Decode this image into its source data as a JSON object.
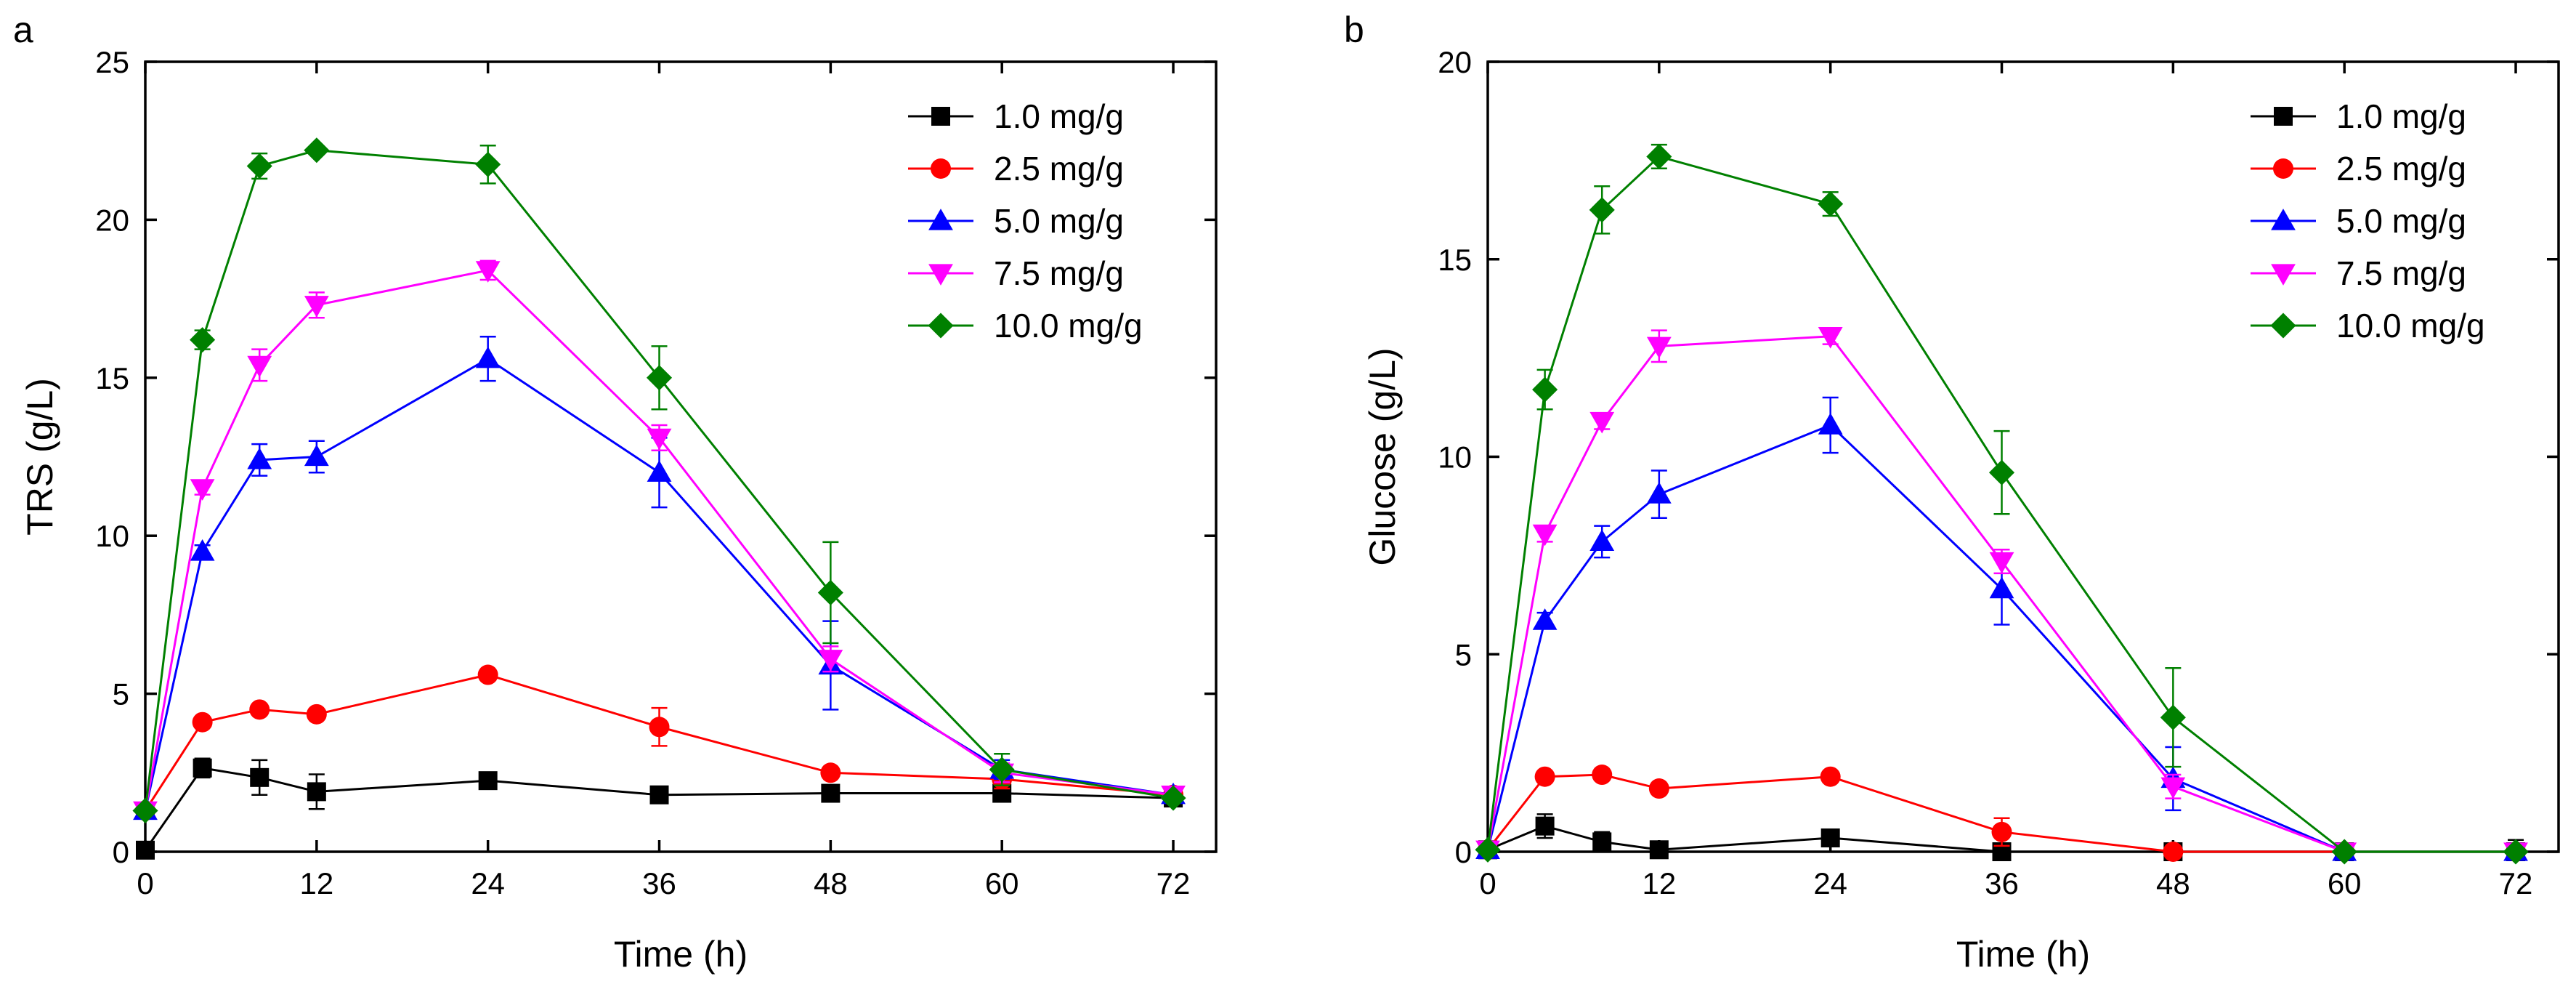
{
  "chart_data": [
    {
      "panel_label": "a",
      "type": "line",
      "title": "",
      "xlabel": "Time (h)",
      "ylabel": "TRS (g/L)",
      "xlim": [
        0,
        75
      ],
      "ylim": [
        0,
        25
      ],
      "xticks": [
        0,
        12,
        24,
        36,
        48,
        60,
        72
      ],
      "yticks": [
        0,
        5,
        10,
        15,
        20,
        25
      ],
      "grid": false,
      "legend_position": "top-right",
      "x": [
        0,
        4,
        8,
        12,
        24,
        36,
        48,
        60,
        72
      ],
      "series": [
        {
          "name": "1.0 mg/g",
          "color": "#000000",
          "marker": "square",
          "values": [
            0.05,
            2.65,
            2.35,
            1.9,
            2.25,
            1.8,
            1.85,
            1.85,
            1.7
          ],
          "errors": [
            0,
            0.3,
            0.55,
            0.55,
            0.15,
            0.1,
            0.1,
            0.1,
            0.1
          ]
        },
        {
          "name": "2.5 mg/g",
          "color": "#ff0000",
          "marker": "circle",
          "values": [
            1.3,
            4.1,
            4.5,
            4.35,
            5.6,
            3.95,
            2.5,
            2.3,
            1.8
          ],
          "errors": [
            0,
            0.1,
            0.1,
            0.1,
            0.1,
            0.6,
            0.1,
            0.3,
            0.1
          ]
        },
        {
          "name": "5.0 mg/g",
          "color": "#0000ff",
          "marker": "triangle-up",
          "values": [
            1.3,
            9.5,
            12.4,
            12.5,
            15.6,
            12.0,
            5.9,
            2.6,
            1.8
          ],
          "errors": [
            0,
            0.2,
            0.5,
            0.5,
            0.7,
            1.1,
            1.4,
            0.3,
            0.1
          ]
        },
        {
          "name": "7.5 mg/g",
          "color": "#ff00ff",
          "marker": "triangle-down",
          "values": [
            1.3,
            11.5,
            15.4,
            17.3,
            18.4,
            13.1,
            6.1,
            2.5,
            1.8
          ],
          "errors": [
            0,
            0.2,
            0.5,
            0.4,
            0.3,
            0.4,
            0.4,
            0.3,
            0.1
          ]
        },
        {
          "name": "10.0 mg/g",
          "color": "#008000",
          "marker": "diamond",
          "values": [
            1.3,
            16.2,
            21.7,
            22.2,
            21.75,
            15.0,
            8.2,
            2.6,
            1.7
          ],
          "errors": [
            0,
            0.3,
            0.4,
            0.1,
            0.6,
            1.0,
            1.6,
            0.5,
            0.1
          ]
        }
      ]
    },
    {
      "panel_label": "b",
      "type": "line",
      "title": "",
      "xlabel": "Time (h)",
      "ylabel": "Glucose (g/L)",
      "xlim": [
        0,
        75
      ],
      "ylim": [
        0,
        20
      ],
      "xticks": [
        0,
        12,
        24,
        36,
        48,
        60,
        72
      ],
      "yticks": [
        0,
        5,
        10,
        15,
        20
      ],
      "grid": false,
      "legend_position": "top-right",
      "x": [
        0,
        4,
        8,
        12,
        24,
        36,
        48,
        60,
        72
      ],
      "series": [
        {
          "name": "1.0 mg/g",
          "color": "#000000",
          "marker": "square",
          "values": [
            0.05,
            0.65,
            0.25,
            0.05,
            0.35,
            0.0,
            0.0,
            0.0,
            0.0
          ],
          "errors": [
            0,
            0.3,
            0.25,
            0.1,
            0.1,
            0.05,
            0.05,
            0.2,
            0.3
          ]
        },
        {
          "name": "2.5 mg/g",
          "color": "#ff0000",
          "marker": "circle",
          "values": [
            0.05,
            1.9,
            1.95,
            1.6,
            1.9,
            0.5,
            0.0,
            0.0,
            0.0
          ],
          "errors": [
            0,
            0.1,
            0.1,
            0.1,
            0.1,
            0.35,
            0.05,
            0.05,
            0.05
          ]
        },
        {
          "name": "5.0 mg/g",
          "color": "#0000ff",
          "marker": "triangle-up",
          "values": [
            0.05,
            5.85,
            7.85,
            9.05,
            10.8,
            6.65,
            1.85,
            0.0,
            0.0
          ],
          "errors": [
            0,
            0.2,
            0.4,
            0.6,
            0.7,
            0.9,
            0.8,
            0.1,
            0.05
          ]
        },
        {
          "name": "7.5 mg/g",
          "color": "#ff00ff",
          "marker": "triangle-down",
          "values": [
            0.05,
            8.05,
            10.9,
            12.8,
            13.05,
            7.35,
            1.65,
            0.0,
            0.0
          ],
          "errors": [
            0,
            0.2,
            0.2,
            0.4,
            0.2,
            0.3,
            0.3,
            0.1,
            0.05
          ]
        },
        {
          "name": "10.0 mg/g",
          "color": "#008000",
          "marker": "diamond",
          "values": [
            0.05,
            11.7,
            16.25,
            17.6,
            16.4,
            9.6,
            3.4,
            0.0,
            0.0
          ],
          "errors": [
            0,
            0.5,
            0.6,
            0.3,
            0.3,
            1.05,
            1.25,
            0.1,
            0.05
          ]
        }
      ]
    }
  ]
}
